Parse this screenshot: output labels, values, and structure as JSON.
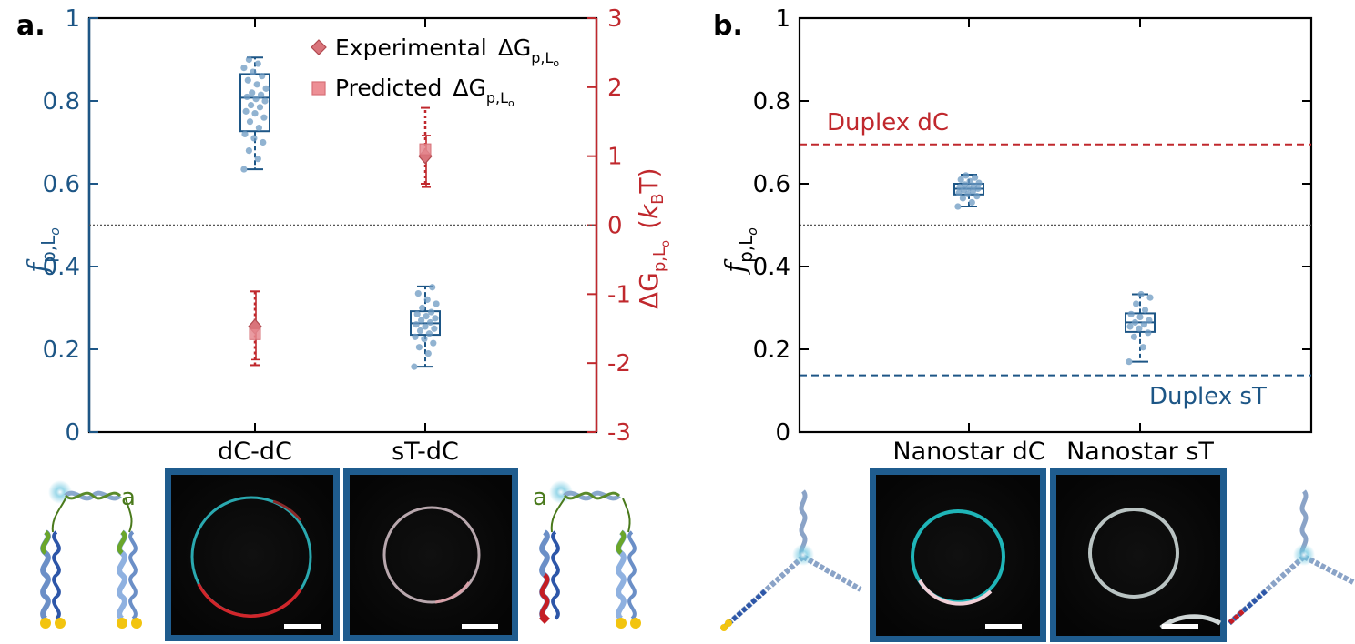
{
  "colors": {
    "blue": "#1d5686",
    "red": "#c0282d",
    "pink": "#e58a90",
    "dot": "#6c9ac2",
    "frame": "#1f5c8e"
  },
  "panel_a": {
    "label": "a.",
    "left_axis_ticks": [
      "0",
      "0.2",
      "0.4",
      "0.6",
      "0.8",
      "1"
    ],
    "right_axis_ticks": [
      "-3",
      "-2",
      "-1",
      "0",
      "1",
      "2",
      "3"
    ],
    "categories": [
      "dC-dC",
      "sT-dC"
    ],
    "left_axis_label": {
      "main": "f",
      "sub": "p,L",
      "subsub": "o"
    },
    "right_axis_label": {
      "main": "ΔG",
      "sub": "p,L",
      "subsub": "o",
      "unit_open": "(",
      "unit_k": "k",
      "unit_b": "B",
      "unit_t": "T)"
    },
    "legend": [
      {
        "symbol": "diamond",
        "text": "Experimental",
        "g": "ΔG",
        "sub": "p,L",
        "subsub": "o"
      },
      {
        "symbol": "square",
        "text": "Predicted",
        "g": "ΔG",
        "sub": "p,L",
        "subsub": "o"
      }
    ]
  },
  "panel_b": {
    "label": "b.",
    "left_axis_ticks": [
      "0",
      "0.2",
      "0.4",
      "0.6",
      "0.8",
      "1"
    ],
    "categories": [
      "Nanostar dC",
      "Nanostar sT"
    ],
    "left_axis_label": {
      "main": "f",
      "sub": "p,L",
      "subsub": "o"
    },
    "ref_lines": [
      {
        "label": "Duplex dC",
        "value": 0.695
      },
      {
        "label": "Duplex sT",
        "value": 0.137
      }
    ]
  },
  "chart_data": [
    {
      "type": "box",
      "panel": "a",
      "ylim": [
        0,
        1
      ],
      "ylim_right": [
        -3,
        3
      ],
      "reference_line": 0.5,
      "categories": [
        "dC-dC",
        "sT-dC"
      ],
      "boxes": [
        {
          "category": "dC-dC",
          "min": 0.635,
          "q1": 0.727,
          "median": 0.808,
          "q3": 0.865,
          "max": 0.905,
          "points": [
            0.635,
            0.66,
            0.68,
            0.7,
            0.71,
            0.72,
            0.735,
            0.75,
            0.76,
            0.77,
            0.775,
            0.785,
            0.79,
            0.8,
            0.805,
            0.81,
            0.815,
            0.82,
            0.83,
            0.84,
            0.85,
            0.86,
            0.87,
            0.88,
            0.89,
            0.9
          ]
        },
        {
          "category": "sT-dC",
          "min": 0.158,
          "q1": 0.235,
          "median": 0.263,
          "q3": 0.292,
          "max": 0.352,
          "points": [
            0.158,
            0.19,
            0.205,
            0.215,
            0.225,
            0.23,
            0.238,
            0.245,
            0.25,
            0.255,
            0.26,
            0.265,
            0.27,
            0.275,
            0.28,
            0.285,
            0.29,
            0.3,
            0.31,
            0.32,
            0.335,
            0.35
          ]
        }
      ],
      "deltaG": [
        {
          "category": "dC-dC",
          "experimental": -1.47,
          "exp_err": [
            -1.95,
            -0.96
          ],
          "predicted": -1.58,
          "pred_err": [
            -2.03,
            -0.96
          ]
        },
        {
          "category": "sT-dC",
          "experimental": 1.0,
          "exp_err": [
            0.55,
            1.3
          ],
          "predicted": 1.1,
          "pred_err": [
            0.6,
            1.7
          ]
        }
      ]
    },
    {
      "type": "box",
      "panel": "b",
      "ylim": [
        0,
        1
      ],
      "reference_line": 0.5,
      "categories": [
        "Nanostar dC",
        "Nanostar sT"
      ],
      "boxes": [
        {
          "category": "Nanostar dC",
          "min": 0.545,
          "q1": 0.574,
          "median": 0.588,
          "q3": 0.6,
          "max": 0.622,
          "points": [
            0.545,
            0.555,
            0.565,
            0.57,
            0.575,
            0.578,
            0.582,
            0.585,
            0.588,
            0.59,
            0.592,
            0.595,
            0.598,
            0.602,
            0.606,
            0.61,
            0.615,
            0.62
          ]
        },
        {
          "category": "Nanostar sT",
          "min": 0.17,
          "q1": 0.242,
          "median": 0.265,
          "q3": 0.287,
          "max": 0.333,
          "points": [
            0.17,
            0.205,
            0.23,
            0.24,
            0.25,
            0.255,
            0.26,
            0.265,
            0.27,
            0.278,
            0.285,
            0.295,
            0.31,
            0.325,
            0.333
          ]
        }
      ]
    }
  ],
  "images": [
    {
      "name": "schematic-dc-dc",
      "label": "a"
    },
    {
      "name": "micrograph-dc-dc"
    },
    {
      "name": "micrograph-st-dc"
    },
    {
      "name": "schematic-st-dc",
      "label": "a"
    },
    {
      "name": "schematic-nanostar-dc"
    },
    {
      "name": "micrograph-nanostar-dc"
    },
    {
      "name": "micrograph-nanostar-st"
    },
    {
      "name": "schematic-nanostar-st"
    }
  ]
}
